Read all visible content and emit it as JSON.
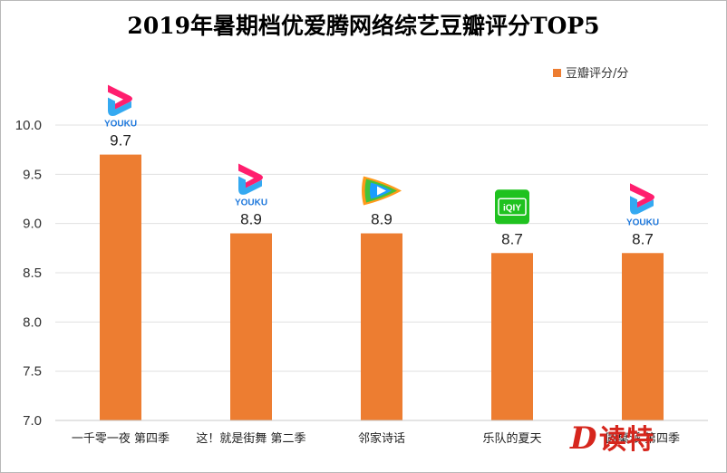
{
  "chart_data": {
    "type": "bar",
    "title": "2019年暑期档优爱腾网络综艺豆瓣评分TOP5",
    "categories": [
      "一千零一夜 第四季",
      "这！就是街舞 第二季",
      "邻家诗话",
      "乐队的夏天",
      "圆桌派 第四季"
    ],
    "series": [
      {
        "name": "豆瓣评分/分",
        "values": [
          9.7,
          8.9,
          8.9,
          8.7,
          8.7
        ],
        "color": "#ed7d31"
      }
    ],
    "data_labels": [
      "9.7",
      "8.9",
      "8.9",
      "8.7",
      "8.7"
    ],
    "platform_logos": [
      "youku",
      "youku",
      "tencent-video",
      "iqiyi",
      "youku"
    ],
    "ylim": [
      7.0,
      10.0
    ],
    "yticks": [
      7.0,
      7.5,
      8.0,
      8.5,
      9.0,
      9.5,
      10.0
    ],
    "ytick_labels": [
      "7.0",
      "7.5",
      "8.0",
      "8.5",
      "9.0",
      "9.5",
      "10.0"
    ],
    "grid": true,
    "legend_position": "top-right",
    "xlabel": "",
    "ylabel": ""
  },
  "logo_texts": {
    "youku": "YOUKU",
    "iqiyi": "iQIY"
  },
  "watermark": {
    "letter": "D",
    "text": "读特"
  },
  "colors": {
    "bar": "#ed7d31",
    "grid": "#e0e0e0",
    "axis": "#c8c8c8",
    "youku_pink": "#ff1e6e",
    "youku_blue": "#1ea0f0",
    "youku_text": "#1e78dc",
    "tencent_blue": "#1a9dff",
    "tencent_green": "#43c23a",
    "tencent_orange": "#ff9a1a",
    "iqiyi_green": "#1fc21f",
    "watermark_red": "#d6261d"
  }
}
